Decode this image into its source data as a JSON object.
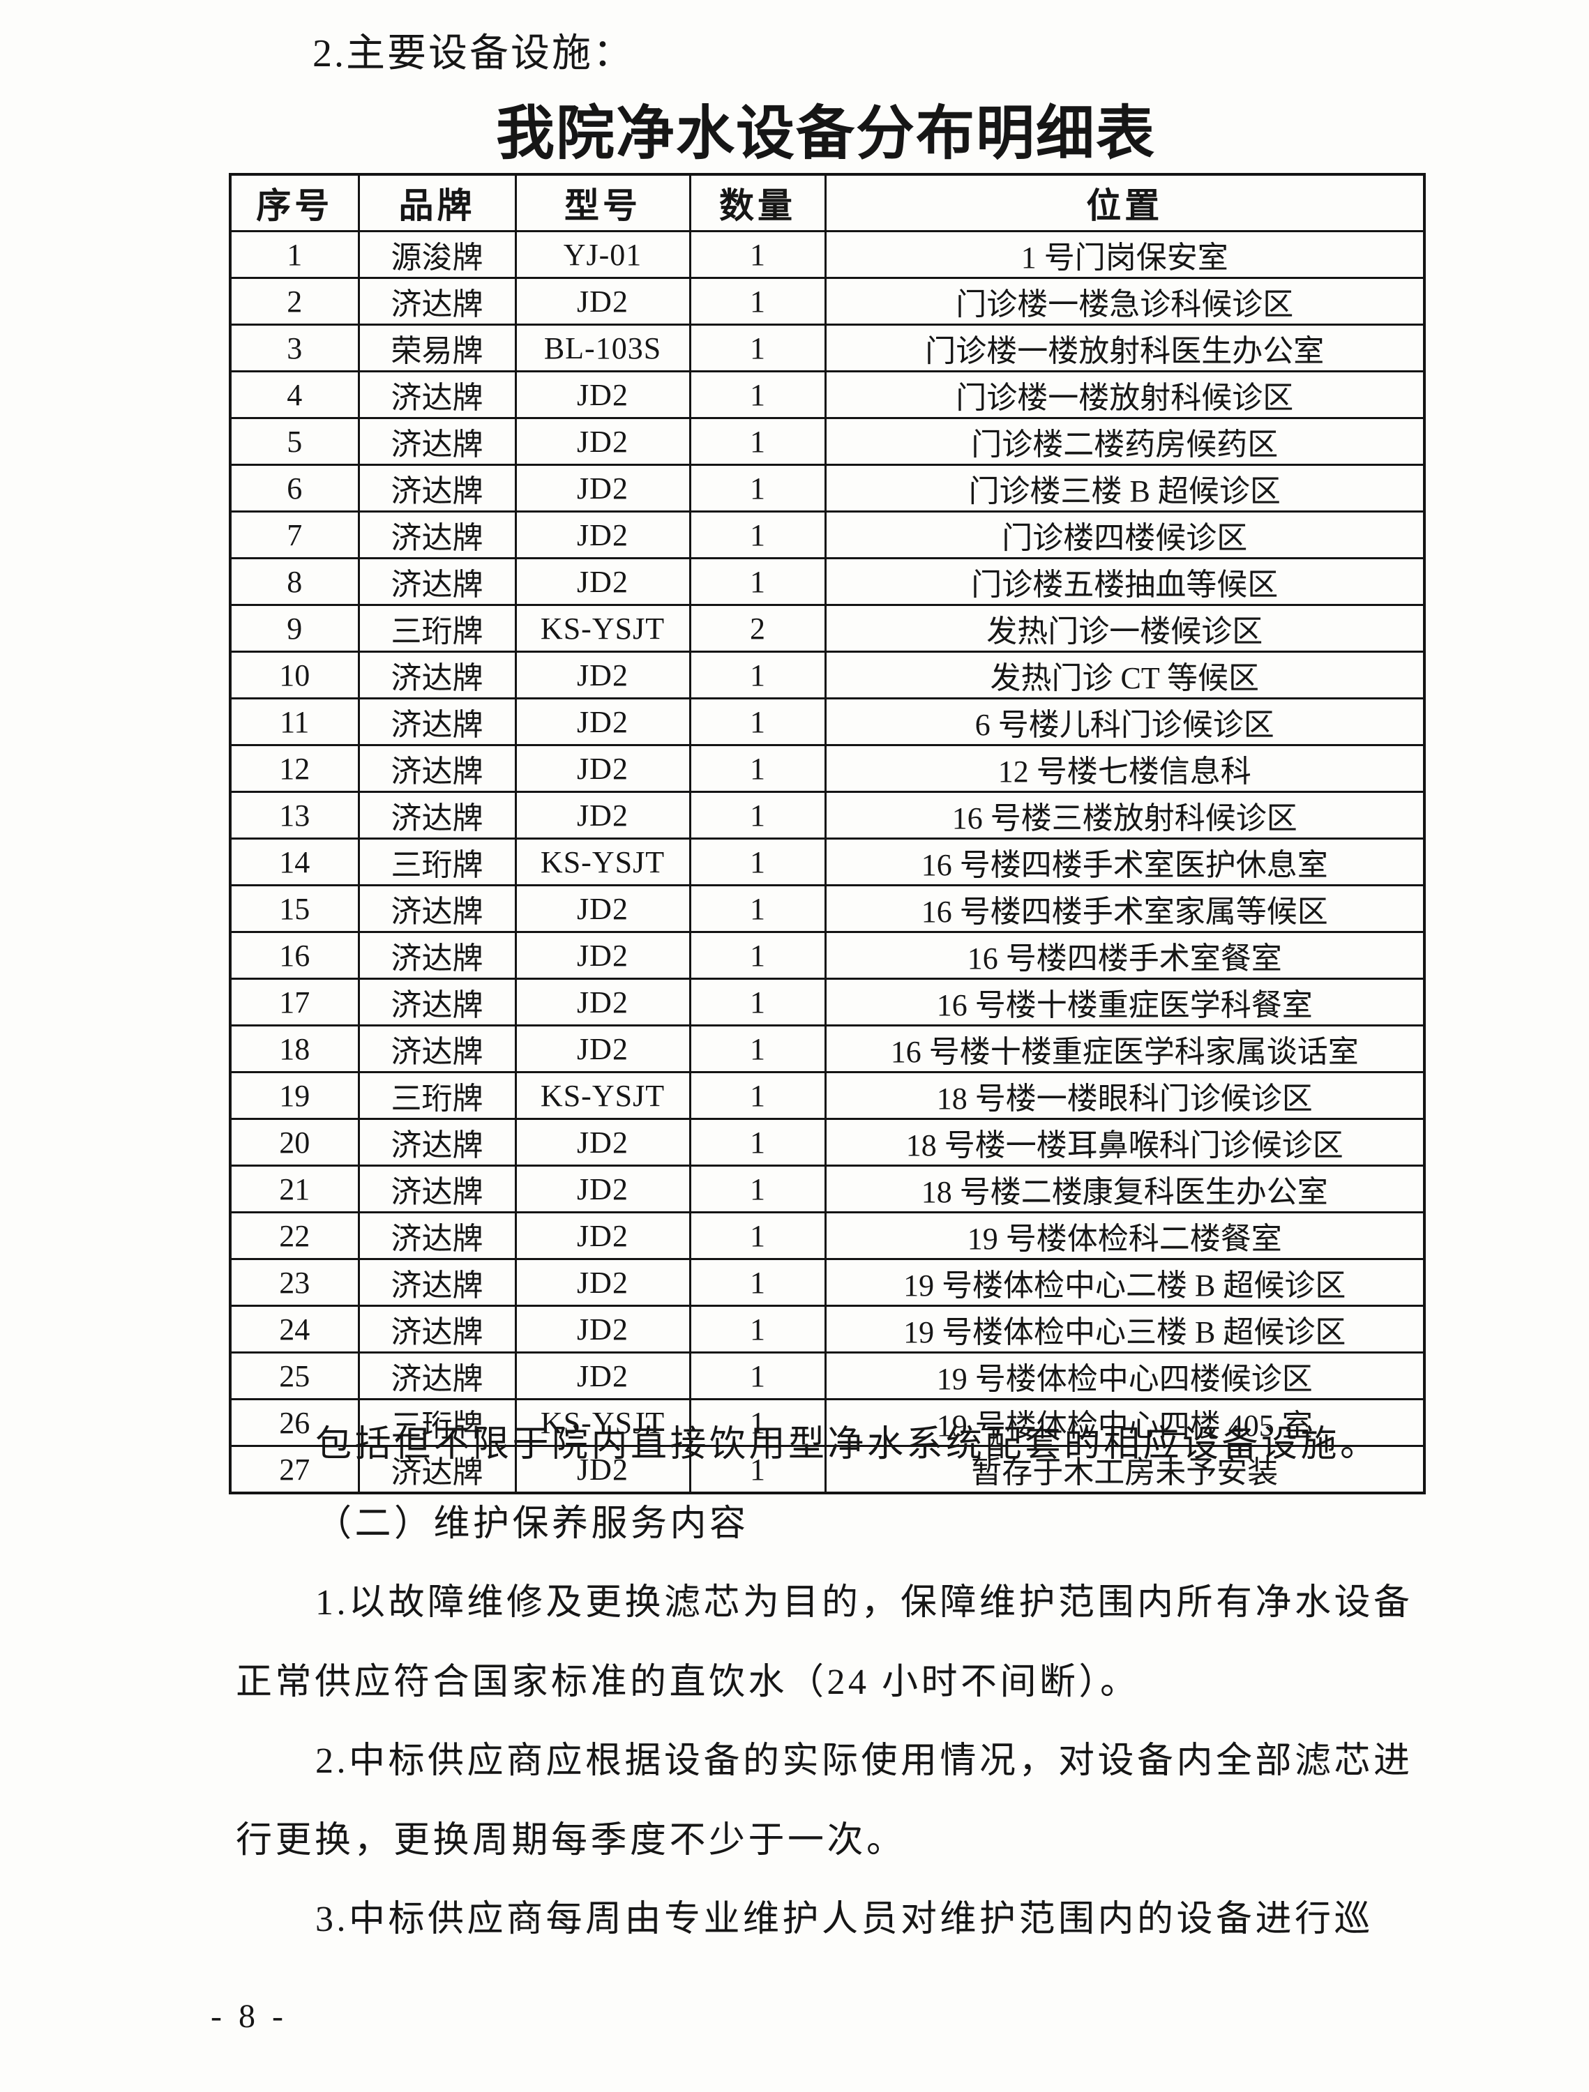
{
  "document": {
    "section_heading": "2.主要设备设施：",
    "table_title": "我院净水设备分布明细表",
    "page_number": "- 8 -"
  },
  "table": {
    "headers": [
      "序号",
      "品牌",
      "型号",
      "数量",
      "位置"
    ],
    "rows": [
      [
        "1",
        "源浚牌",
        "YJ-01",
        "1",
        "1 号门岗保安室"
      ],
      [
        "2",
        "济达牌",
        "JD2",
        "1",
        "门诊楼一楼急诊科候诊区"
      ],
      [
        "3",
        "荣易牌",
        "BL-103S",
        "1",
        "门诊楼一楼放射科医生办公室"
      ],
      [
        "4",
        "济达牌",
        "JD2",
        "1",
        "门诊楼一楼放射科候诊区"
      ],
      [
        "5",
        "济达牌",
        "JD2",
        "1",
        "门诊楼二楼药房候药区"
      ],
      [
        "6",
        "济达牌",
        "JD2",
        "1",
        "门诊楼三楼 B 超候诊区"
      ],
      [
        "7",
        "济达牌",
        "JD2",
        "1",
        "门诊楼四楼候诊区"
      ],
      [
        "8",
        "济达牌",
        "JD2",
        "1",
        "门诊楼五楼抽血等候区"
      ],
      [
        "9",
        "三珩牌",
        "KS-YSJT",
        "2",
        "发热门诊一楼候诊区"
      ],
      [
        "10",
        "济达牌",
        "JD2",
        "1",
        "发热门诊 CT 等候区"
      ],
      [
        "11",
        "济达牌",
        "JD2",
        "1",
        "6 号楼儿科门诊候诊区"
      ],
      [
        "12",
        "济达牌",
        "JD2",
        "1",
        "12 号楼七楼信息科"
      ],
      [
        "13",
        "济达牌",
        "JD2",
        "1",
        "16 号楼三楼放射科候诊区"
      ],
      [
        "14",
        "三珩牌",
        "KS-YSJT",
        "1",
        "16 号楼四楼手术室医护休息室"
      ],
      [
        "15",
        "济达牌",
        "JD2",
        "1",
        "16 号楼四楼手术室家属等候区"
      ],
      [
        "16",
        "济达牌",
        "JD2",
        "1",
        "16 号楼四楼手术室餐室"
      ],
      [
        "17",
        "济达牌",
        "JD2",
        "1",
        "16 号楼十楼重症医学科餐室"
      ],
      [
        "18",
        "济达牌",
        "JD2",
        "1",
        "16 号楼十楼重症医学科家属谈话室"
      ],
      [
        "19",
        "三珩牌",
        "KS-YSJT",
        "1",
        "18 号楼一楼眼科门诊候诊区"
      ],
      [
        "20",
        "济达牌",
        "JD2",
        "1",
        "18 号楼一楼耳鼻喉科门诊候诊区"
      ],
      [
        "21",
        "济达牌",
        "JD2",
        "1",
        "18 号楼二楼康复科医生办公室"
      ],
      [
        "22",
        "济达牌",
        "JD2",
        "1",
        "19 号楼体检科二楼餐室"
      ],
      [
        "23",
        "济达牌",
        "JD2",
        "1",
        "19 号楼体检中心二楼 B 超候诊区"
      ],
      [
        "24",
        "济达牌",
        "JD2",
        "1",
        "19 号楼体检中心三楼 B 超候诊区"
      ],
      [
        "25",
        "济达牌",
        "JD2",
        "1",
        "19 号楼体检中心四楼候诊区"
      ],
      [
        "26",
        "三珩牌",
        "KS-YSJT",
        "1",
        "19 号楼体检中心四楼 405 室"
      ],
      [
        "27",
        "济达牌",
        "JD2",
        "1",
        "暂存于木工房未予安装"
      ]
    ]
  },
  "body_lines": [
    {
      "text": "包括但不限于院内直接饮用型净水系统配套的相应设备设施。",
      "indent": true
    },
    {
      "text": "（二）维护保养服务内容",
      "indent": true
    },
    {
      "text": "1.以故障维修及更换滤芯为目的，保障维护范围内所有净水设备",
      "indent": true
    },
    {
      "text": "正常供应符合国家标准的直饮水（24 小时不间断）。",
      "indent": false
    },
    {
      "text": "2.中标供应商应根据设备的实际使用情况，对设备内全部滤芯进",
      "indent": true
    },
    {
      "text": "行更换，更换周期每季度不少于一次。",
      "indent": false
    },
    {
      "text": "3.中标供应商每周由专业维护人员对维护范围内的设备进行巡",
      "indent": true
    }
  ]
}
